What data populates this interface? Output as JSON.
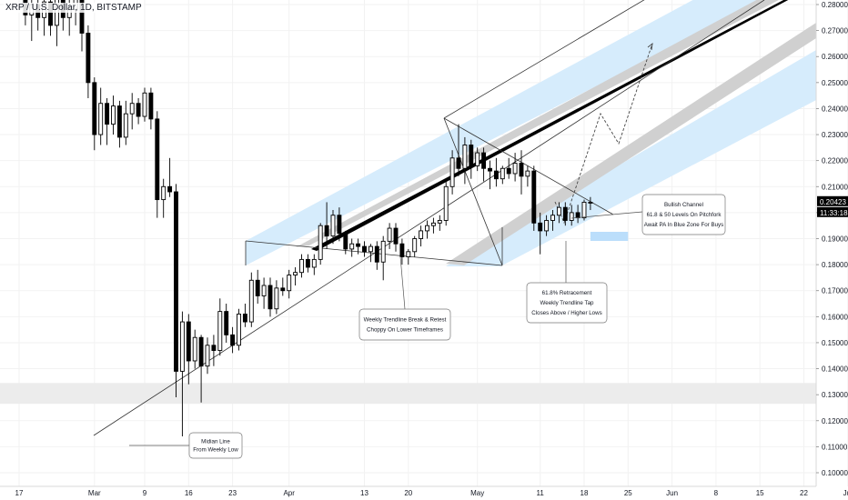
{
  "header": {
    "symbol_line": "XRP / U.S. Dollar, 1D, BITSTAMP"
  },
  "price_axis": {
    "last_price": "0.20423",
    "countdown": "11:33:18"
  },
  "chart_data": {
    "type": "candlestick",
    "title": "XRP / U.S. Dollar, 1D, BITSTAMP",
    "xlabel": "",
    "ylabel": "",
    "ylim": [
      0.095,
      0.2875
    ],
    "y_ticks": [
      0.1,
      0.11,
      0.12,
      0.13,
      0.14,
      0.15,
      0.16,
      0.17,
      0.18,
      0.19,
      0.2,
      0.21,
      0.22,
      0.23,
      0.24,
      0.25,
      0.26,
      0.27,
      0.28
    ],
    "y_tick_labels": [
      "0.10000",
      "0.11000",
      "0.12000",
      "0.13000",
      "0.14000",
      "0.15000",
      "0.16000",
      "0.17000",
      "0.18000",
      "0.19000",
      "0.20000",
      "0.21000",
      "0.22000",
      "0.23000",
      "0.24000",
      "0.25000",
      "0.26000",
      "0.27000",
      "0.28000"
    ],
    "x_tick_labels": [
      {
        "day": 0,
        "label": "17"
      },
      {
        "day": 12,
        "label": "Mar"
      },
      {
        "day": 20,
        "label": "9"
      },
      {
        "day": 27,
        "label": "16"
      },
      {
        "day": 34,
        "label": "23"
      },
      {
        "day": 43,
        "label": "Apr"
      },
      {
        "day": 55,
        "label": "13"
      },
      {
        "day": 62,
        "label": "20"
      },
      {
        "day": 73,
        "label": "May"
      },
      {
        "day": 83,
        "label": "11"
      },
      {
        "day": 90,
        "label": "18"
      },
      {
        "day": 97,
        "label": "25"
      },
      {
        "day": 104,
        "label": "Jun"
      },
      {
        "day": 111,
        "label": "8"
      },
      {
        "day": 118,
        "label": "15"
      },
      {
        "day": 125,
        "label": "22"
      },
      {
        "day": 132,
        "label": "Jul"
      }
    ],
    "x_range_days": [
      -2,
      134
    ],
    "candles": [
      {
        "d": 1,
        "o": 0.282,
        "h": 0.288,
        "l": 0.272,
        "c": 0.276
      },
      {
        "d": 2,
        "o": 0.276,
        "h": 0.283,
        "l": 0.266,
        "c": 0.28
      },
      {
        "d": 3,
        "o": 0.28,
        "h": 0.287,
        "l": 0.27,
        "c": 0.275
      },
      {
        "d": 4,
        "o": 0.275,
        "h": 0.284,
        "l": 0.268,
        "c": 0.281
      },
      {
        "d": 5,
        "o": 0.281,
        "h": 0.287,
        "l": 0.268,
        "c": 0.272
      },
      {
        "d": 6,
        "o": 0.272,
        "h": 0.285,
        "l": 0.264,
        "c": 0.283
      },
      {
        "d": 7,
        "o": 0.283,
        "h": 0.288,
        "l": 0.27,
        "c": 0.275
      },
      {
        "d": 8,
        "o": 0.275,
        "h": 0.283,
        "l": 0.268,
        "c": 0.278
      },
      {
        "d": 9,
        "o": 0.278,
        "h": 0.286,
        "l": 0.272,
        "c": 0.285
      },
      {
        "d": 10,
        "o": 0.285,
        "h": 0.288,
        "l": 0.262,
        "c": 0.269
      },
      {
        "d": 11,
        "o": 0.269,
        "h": 0.272,
        "l": 0.244,
        "c": 0.25
      },
      {
        "d": 12,
        "o": 0.25,
        "h": 0.252,
        "l": 0.224,
        "c": 0.23
      },
      {
        "d": 13,
        "o": 0.23,
        "h": 0.248,
        "l": 0.226,
        "c": 0.242
      },
      {
        "d": 14,
        "o": 0.242,
        "h": 0.244,
        "l": 0.226,
        "c": 0.234
      },
      {
        "d": 15,
        "o": 0.234,
        "h": 0.245,
        "l": 0.23,
        "c": 0.241
      },
      {
        "d": 16,
        "o": 0.241,
        "h": 0.243,
        "l": 0.225,
        "c": 0.229
      },
      {
        "d": 17,
        "o": 0.229,
        "h": 0.243,
        "l": 0.226,
        "c": 0.238
      },
      {
        "d": 18,
        "o": 0.238,
        "h": 0.246,
        "l": 0.232,
        "c": 0.242
      },
      {
        "d": 19,
        "o": 0.242,
        "h": 0.244,
        "l": 0.234,
        "c": 0.237
      },
      {
        "d": 20,
        "o": 0.237,
        "h": 0.248,
        "l": 0.235,
        "c": 0.246
      },
      {
        "d": 21,
        "o": 0.246,
        "h": 0.248,
        "l": 0.232,
        "c": 0.236
      },
      {
        "d": 22,
        "o": 0.236,
        "h": 0.239,
        "l": 0.198,
        "c": 0.205
      },
      {
        "d": 23,
        "o": 0.205,
        "h": 0.213,
        "l": 0.198,
        "c": 0.21
      },
      {
        "d": 24,
        "o": 0.21,
        "h": 0.221,
        "l": 0.206,
        "c": 0.208
      },
      {
        "d": 25,
        "o": 0.208,
        "h": 0.211,
        "l": 0.129,
        "c": 0.139
      },
      {
        "d": 26,
        "o": 0.139,
        "h": 0.162,
        "l": 0.114,
        "c": 0.158
      },
      {
        "d": 27,
        "o": 0.158,
        "h": 0.161,
        "l": 0.134,
        "c": 0.143
      },
      {
        "d": 28,
        "o": 0.143,
        "h": 0.155,
        "l": 0.14,
        "c": 0.152
      },
      {
        "d": 29,
        "o": 0.152,
        "h": 0.153,
        "l": 0.127,
        "c": 0.141
      },
      {
        "d": 30,
        "o": 0.141,
        "h": 0.152,
        "l": 0.138,
        "c": 0.149
      },
      {
        "d": 31,
        "o": 0.149,
        "h": 0.153,
        "l": 0.141,
        "c": 0.147
      },
      {
        "d": 32,
        "o": 0.147,
        "h": 0.167,
        "l": 0.145,
        "c": 0.162
      },
      {
        "d": 33,
        "o": 0.162,
        "h": 0.165,
        "l": 0.15,
        "c": 0.153
      },
      {
        "d": 34,
        "o": 0.153,
        "h": 0.156,
        "l": 0.146,
        "c": 0.149
      },
      {
        "d": 35,
        "o": 0.149,
        "h": 0.163,
        "l": 0.147,
        "c": 0.161
      },
      {
        "d": 36,
        "o": 0.161,
        "h": 0.165,
        "l": 0.156,
        "c": 0.158
      },
      {
        "d": 37,
        "o": 0.158,
        "h": 0.177,
        "l": 0.156,
        "c": 0.174
      },
      {
        "d": 38,
        "o": 0.174,
        "h": 0.178,
        "l": 0.165,
        "c": 0.168
      },
      {
        "d": 39,
        "o": 0.168,
        "h": 0.175,
        "l": 0.163,
        "c": 0.172
      },
      {
        "d": 40,
        "o": 0.172,
        "h": 0.175,
        "l": 0.16,
        "c": 0.163
      },
      {
        "d": 41,
        "o": 0.163,
        "h": 0.174,
        "l": 0.161,
        "c": 0.171
      },
      {
        "d": 42,
        "o": 0.171,
        "h": 0.175,
        "l": 0.168,
        "c": 0.17
      },
      {
        "d": 43,
        "o": 0.17,
        "h": 0.178,
        "l": 0.167,
        "c": 0.176
      },
      {
        "d": 44,
        "o": 0.176,
        "h": 0.179,
        "l": 0.172,
        "c": 0.177
      },
      {
        "d": 45,
        "o": 0.177,
        "h": 0.184,
        "l": 0.175,
        "c": 0.182
      },
      {
        "d": 46,
        "o": 0.182,
        "h": 0.184,
        "l": 0.177,
        "c": 0.179
      },
      {
        "d": 47,
        "o": 0.179,
        "h": 0.184,
        "l": 0.176,
        "c": 0.182
      },
      {
        "d": 48,
        "o": 0.182,
        "h": 0.196,
        "l": 0.18,
        "c": 0.195
      },
      {
        "d": 49,
        "o": 0.195,
        "h": 0.204,
        "l": 0.186,
        "c": 0.191
      },
      {
        "d": 50,
        "o": 0.191,
        "h": 0.201,
        "l": 0.188,
        "c": 0.199
      },
      {
        "d": 51,
        "o": 0.199,
        "h": 0.202,
        "l": 0.189,
        "c": 0.192
      },
      {
        "d": 52,
        "o": 0.192,
        "h": 0.193,
        "l": 0.184,
        "c": 0.186
      },
      {
        "d": 53,
        "o": 0.186,
        "h": 0.19,
        "l": 0.183,
        "c": 0.188
      },
      {
        "d": 54,
        "o": 0.188,
        "h": 0.19,
        "l": 0.184,
        "c": 0.187
      },
      {
        "d": 55,
        "o": 0.187,
        "h": 0.189,
        "l": 0.183,
        "c": 0.185
      },
      {
        "d": 56,
        "o": 0.185,
        "h": 0.188,
        "l": 0.181,
        "c": 0.187
      },
      {
        "d": 57,
        "o": 0.187,
        "h": 0.189,
        "l": 0.178,
        "c": 0.181
      },
      {
        "d": 58,
        "o": 0.181,
        "h": 0.191,
        "l": 0.174,
        "c": 0.189
      },
      {
        "d": 59,
        "o": 0.189,
        "h": 0.196,
        "l": 0.186,
        "c": 0.194
      },
      {
        "d": 60,
        "o": 0.194,
        "h": 0.196,
        "l": 0.185,
        "c": 0.188
      },
      {
        "d": 61,
        "o": 0.188,
        "h": 0.19,
        "l": 0.18,
        "c": 0.183
      },
      {
        "d": 62,
        "o": 0.183,
        "h": 0.186,
        "l": 0.18,
        "c": 0.185
      },
      {
        "d": 63,
        "o": 0.185,
        "h": 0.191,
        "l": 0.183,
        "c": 0.19
      },
      {
        "d": 64,
        "o": 0.19,
        "h": 0.195,
        "l": 0.187,
        "c": 0.193
      },
      {
        "d": 65,
        "o": 0.193,
        "h": 0.197,
        "l": 0.19,
        "c": 0.195
      },
      {
        "d": 66,
        "o": 0.195,
        "h": 0.198,
        "l": 0.192,
        "c": 0.196
      },
      {
        "d": 67,
        "o": 0.196,
        "h": 0.199,
        "l": 0.193,
        "c": 0.197
      },
      {
        "d": 68,
        "o": 0.197,
        "h": 0.212,
        "l": 0.195,
        "c": 0.21
      },
      {
        "d": 69,
        "o": 0.21,
        "h": 0.224,
        "l": 0.207,
        "c": 0.221
      },
      {
        "d": 70,
        "o": 0.221,
        "h": 0.234,
        "l": 0.214,
        "c": 0.217
      },
      {
        "d": 71,
        "o": 0.217,
        "h": 0.229,
        "l": 0.211,
        "c": 0.226
      },
      {
        "d": 72,
        "o": 0.226,
        "h": 0.228,
        "l": 0.213,
        "c": 0.218
      },
      {
        "d": 73,
        "o": 0.218,
        "h": 0.225,
        "l": 0.216,
        "c": 0.223
      },
      {
        "d": 74,
        "o": 0.223,
        "h": 0.225,
        "l": 0.212,
        "c": 0.217
      },
      {
        "d": 75,
        "o": 0.217,
        "h": 0.22,
        "l": 0.209,
        "c": 0.216
      },
      {
        "d": 76,
        "o": 0.216,
        "h": 0.221,
        "l": 0.21,
        "c": 0.213
      },
      {
        "d": 77,
        "o": 0.213,
        "h": 0.218,
        "l": 0.211,
        "c": 0.217
      },
      {
        "d": 78,
        "o": 0.217,
        "h": 0.221,
        "l": 0.213,
        "c": 0.215
      },
      {
        "d": 79,
        "o": 0.215,
        "h": 0.223,
        "l": 0.212,
        "c": 0.219
      },
      {
        "d": 80,
        "o": 0.219,
        "h": 0.224,
        "l": 0.207,
        "c": 0.214
      },
      {
        "d": 81,
        "o": 0.214,
        "h": 0.218,
        "l": 0.21,
        "c": 0.216
      },
      {
        "d": 82,
        "o": 0.216,
        "h": 0.218,
        "l": 0.193,
        "c": 0.196
      },
      {
        "d": 83,
        "o": 0.196,
        "h": 0.2,
        "l": 0.184,
        "c": 0.193
      },
      {
        "d": 84,
        "o": 0.193,
        "h": 0.199,
        "l": 0.191,
        "c": 0.197
      },
      {
        "d": 85,
        "o": 0.197,
        "h": 0.201,
        "l": 0.193,
        "c": 0.199
      },
      {
        "d": 86,
        "o": 0.199,
        "h": 0.204,
        "l": 0.196,
        "c": 0.202
      },
      {
        "d": 87,
        "o": 0.202,
        "h": 0.204,
        "l": 0.195,
        "c": 0.197
      },
      {
        "d": 88,
        "o": 0.197,
        "h": 0.203,
        "l": 0.195,
        "c": 0.2
      },
      {
        "d": 89,
        "o": 0.2,
        "h": 0.203,
        "l": 0.196,
        "c": 0.198
      },
      {
        "d": 90,
        "o": 0.198,
        "h": 0.205,
        "l": 0.197,
        "c": 0.204
      },
      {
        "d": 91,
        "o": 0.204,
        "h": 0.206,
        "l": 0.201,
        "c": 0.204
      }
    ],
    "zones": [
      {
        "name": "support-zone",
        "y": [
          0.1265,
          0.1345
        ],
        "color": "#ececec"
      },
      {
        "name": "buy-zone",
        "x_days": [
          91,
          97
        ],
        "y": [
          0.1925,
          0.1905
        ],
        "color": "#bbdefb"
      }
    ],
    "annotations": [
      {
        "lines": [
          "Bullish Channel",
          "61.8 & 50 Levels On Pitchfork",
          "Await PA In Blue Zone For Buys"
        ]
      },
      {
        "lines": [
          "61.8% Retracement",
          "Weekly Trendline Tap",
          "Closes Above / Higher Lows"
        ]
      },
      {
        "lines": [
          "Weekly Trendline Break & Retest",
          "Choppy On Lower Timeframes"
        ]
      },
      {
        "lines": [
          "Midian Line",
          "From Weekly Low"
        ]
      }
    ]
  },
  "colors": {
    "candle": "#000000",
    "grid": "#f2f2f2",
    "band_blue": "#d6ecfc",
    "band_grey": "#d0d0d0",
    "line": "#333333",
    "price_label_bg": "#000000"
  }
}
